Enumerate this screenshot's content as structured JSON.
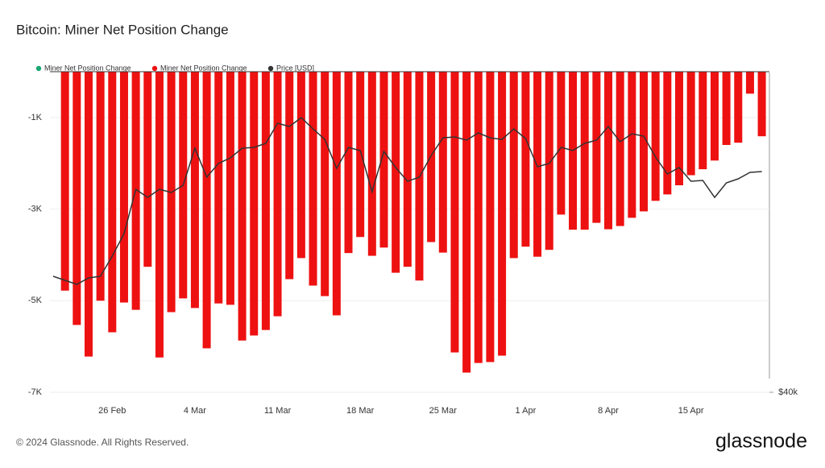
{
  "chart_data": {
    "type": "bar",
    "title": "Bitcoin: Miner Net Position Change",
    "categories": [
      null,
      null,
      null,
      null,
      null,
      "26 Feb",
      null,
      null,
      null,
      null,
      null,
      null,
      "4 Mar",
      null,
      null,
      null,
      null,
      null,
      null,
      "11 Mar",
      null,
      null,
      null,
      null,
      null,
      null,
      "18 Mar",
      null,
      null,
      null,
      null,
      null,
      null,
      "25 Mar",
      null,
      null,
      null,
      null,
      null,
      null,
      "1 Apr",
      null,
      null,
      null,
      null,
      null,
      null,
      "8 Apr",
      null,
      null,
      null,
      null,
      null,
      null,
      "15 Apr",
      null,
      null,
      null,
      null,
      null,
      null
    ],
    "series": [
      {
        "name": "Miner Net Position Change",
        "color": "#1aa772",
        "values": [
          null,
          null,
          null,
          null,
          null,
          null,
          null,
          null,
          null,
          null,
          null,
          null,
          null,
          null,
          null,
          null,
          null,
          null,
          null,
          null,
          null,
          null,
          null,
          null,
          null,
          null,
          null,
          null,
          null,
          null,
          null,
          null,
          null,
          null,
          null,
          null,
          null,
          null,
          null,
          null,
          null,
          null,
          null,
          null,
          null,
          null,
          null,
          null,
          null,
          null,
          null,
          null,
          null,
          null,
          null,
          null,
          null,
          null,
          null,
          null,
          null
        ]
      },
      {
        "name": "Miner Net Position Change",
        "color": "#ee1111",
        "values": [
          null,
          -4780,
          -5530,
          -6220,
          -5000,
          -5690,
          -5040,
          -5200,
          -4260,
          -6240,
          -5250,
          -4950,
          -5160,
          -6040,
          -5060,
          -5090,
          -5870,
          -5760,
          -5640,
          -5340,
          -4530,
          -4070,
          -4670,
          -4900,
          -5320,
          -3960,
          -3610,
          -4020,
          -3840,
          -4390,
          -4260,
          -4560,
          -3720,
          -3950,
          -6130,
          -6570,
          -6360,
          -6340,
          -6200,
          -4070,
          -3820,
          -4040,
          -3890,
          -3120,
          -3450,
          -3450,
          -3300,
          -3440,
          -3370,
          -3190,
          -3050,
          -2820,
          -2680,
          -2480,
          -2260,
          -2130,
          -1940,
          -1600,
          -1550,
          -480,
          -1410
        ]
      },
      {
        "name": "Price [USD]",
        "color": "#333333",
        "type": "line",
        "axis": "y2",
        "values": [
          51700,
          51240,
          50790,
          51520,
          51700,
          54060,
          56820,
          62680,
          61560,
          62680,
          62230,
          63230,
          68640,
          64370,
          66360,
          67190,
          68640,
          68760,
          69380,
          72540,
          72020,
          73450,
          71640,
          69990,
          65650,
          68760,
          68270,
          62340,
          68150,
          65760,
          63800,
          64370,
          67540,
          70240,
          70370,
          69870,
          71000,
          70240,
          69990,
          71640,
          70120,
          65880,
          66360,
          68760,
          68300,
          69380,
          69870,
          72020,
          69620,
          70880,
          70500,
          67300,
          64830,
          65760,
          63800,
          63920,
          61560,
          63570,
          64140,
          65060,
          65180
        ]
      }
    ],
    "ylim": [
      -7000,
      0
    ],
    "yticks": [
      {
        "value": -1000,
        "label": "-1K"
      },
      {
        "value": -3000,
        "label": "-3K"
      },
      {
        "value": -5000,
        "label": "-5K"
      },
      {
        "value": -7000,
        "label": "-7K"
      }
    ],
    "y2lim": [
      40000,
      81300
    ],
    "y2ticks": [
      {
        "value": 40000,
        "label": "$40k"
      }
    ],
    "y2log": true,
    "grid": true
  },
  "footer": "© 2024 Glassnode. All Rights Reserved.",
  "brand": "glassnode"
}
